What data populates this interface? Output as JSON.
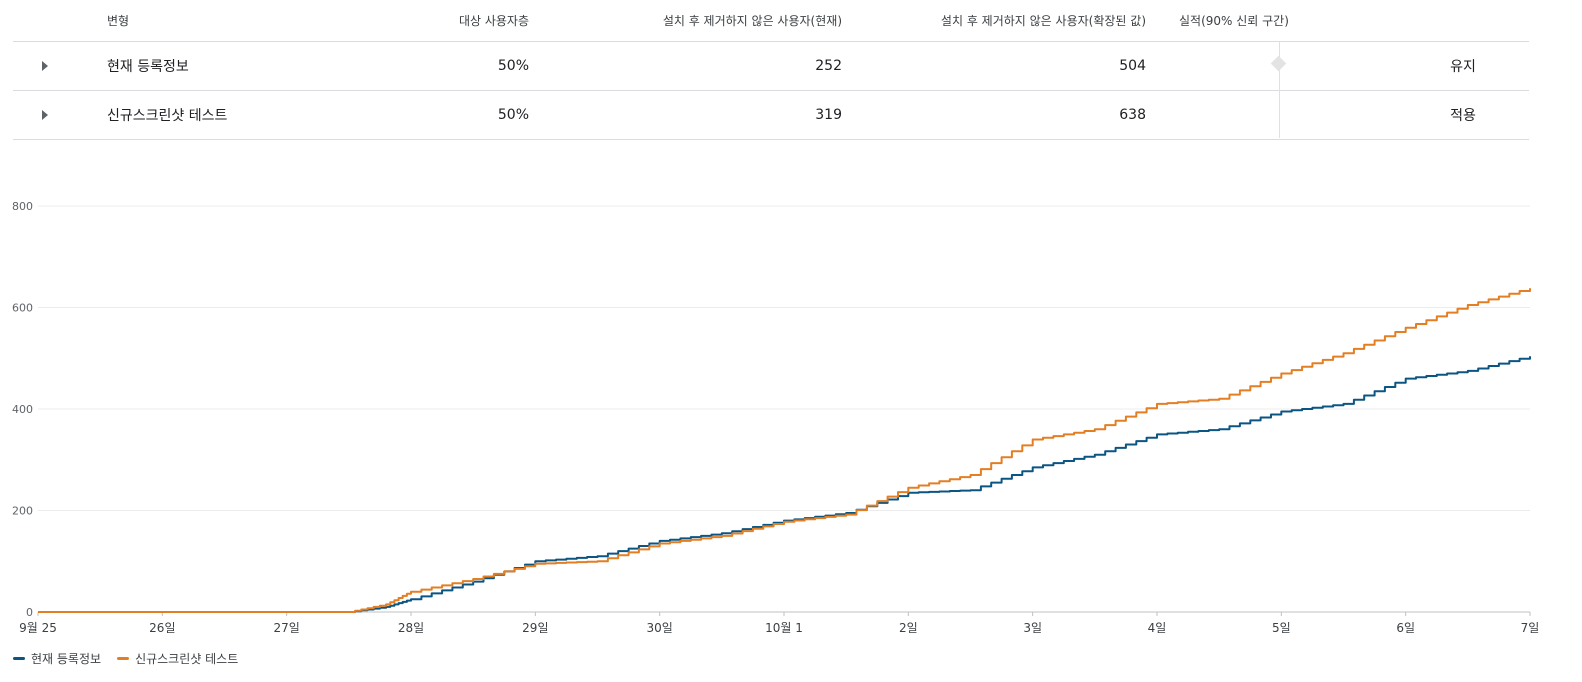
{
  "table": {
    "headers": {
      "variant": "변형",
      "audience": "대상 사용자층",
      "retained_current": "설치 후 제거하지 않은 사용자(현재)",
      "retained_scaled": "설치 후 제거하지 않은 사용자(확장된 값)",
      "performance": "실적(90% 신뢰 구간)"
    },
    "rows": [
      {
        "variant": "현재 등록정보",
        "audience": "50%",
        "retained_current": "252",
        "retained_scaled": "504",
        "verdict": "유지"
      },
      {
        "variant": "신규스크린샷 테스트",
        "audience": "50%",
        "retained_current": "319",
        "retained_scaled": "638",
        "verdict": "적용"
      }
    ]
  },
  "chart_data": {
    "type": "line",
    "x_ticks": [
      "9월 25",
      "26일",
      "27일",
      "28일",
      "29일",
      "30일",
      "10월 1",
      "2일",
      "3일",
      "4일",
      "5일",
      "6일",
      "7일"
    ],
    "x": [
      0,
      1,
      2,
      2.5,
      2.8,
      3,
      3.5,
      4,
      4.5,
      5,
      5.5,
      6,
      6.5,
      7,
      7.5,
      8,
      8.5,
      9,
      9.5,
      10,
      10.5,
      11,
      11.5,
      12
    ],
    "ylim": [
      0,
      800
    ],
    "y_ticks": [
      0,
      200,
      400,
      600,
      800
    ],
    "grid": true,
    "legend_position": "bottom-left",
    "series": [
      {
        "name": "현재 등록정보",
        "color": "#0b5583",
        "values": [
          0,
          0,
          0,
          0,
          10,
          25,
          60,
          100,
          110,
          140,
          155,
          180,
          195,
          235,
          240,
          285,
          310,
          350,
          360,
          395,
          410,
          460,
          475,
          504
        ]
      },
      {
        "name": "신규스크린샷 테스트",
        "color": "#e37f22",
        "values": [
          0,
          0,
          0,
          0,
          15,
          40,
          65,
          95,
          100,
          135,
          150,
          178,
          192,
          245,
          270,
          340,
          360,
          410,
          420,
          470,
          510,
          560,
          605,
          638
        ]
      }
    ]
  }
}
